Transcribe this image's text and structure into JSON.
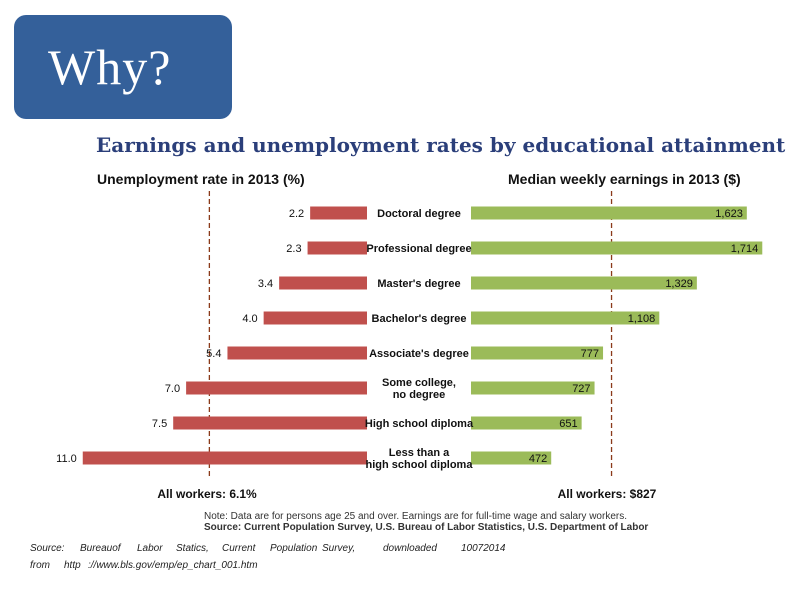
{
  "header": {
    "why_text": "Why?"
  },
  "chart_data": {
    "type": "bar",
    "title": "Earnings and unemployment rates by educational attainment",
    "categories": [
      [
        "Doctoral degree"
      ],
      [
        "Professional degree"
      ],
      [
        "Master's degree"
      ],
      [
        "Bachelor's degree"
      ],
      [
        "Associate's degree"
      ],
      [
        "Some college,",
        "no degree"
      ],
      [
        "High school diploma"
      ],
      [
        "Less than a",
        "high school diploma"
      ]
    ],
    "left_panel": {
      "title": "Unemployment rate in 2013 (%)",
      "values": [
        2.2,
        2.3,
        3.4,
        4.0,
        5.4,
        7.0,
        7.5,
        11.0
      ],
      "labels": [
        "2.2",
        "2.3",
        "3.4",
        "4.0",
        "5.4",
        "7.0",
        "7.5",
        "11.0"
      ],
      "reference_value": 6.1,
      "reference_label": "All workers: 6.1%",
      "color": "#c0504d",
      "xlim": [
        0,
        11.3
      ]
    },
    "right_panel": {
      "title": "Median weekly earnings in 2013 ($)",
      "values": [
        1623,
        1714,
        1329,
        1108,
        777,
        727,
        651,
        472
      ],
      "labels": [
        "1,623",
        "1,714",
        "1,329",
        "1,108",
        "777",
        "727",
        "651",
        "472"
      ],
      "reference_value": 827,
      "reference_label": "All workers: $827",
      "color": "#9bbb59",
      "xlim": [
        0,
        1730
      ]
    },
    "reference_line_color": "#8b3a1a"
  },
  "footnote": {
    "note": "Note: Data are for persons age 25 and over. Earnings are for full-time wage and salary workers.",
    "source": "Source: Current Population Survey, U.S. Bureau of Labor Statistics, U.S. Department of Labor"
  },
  "source_credit": {
    "line1": [
      "Source:",
      "Bureauof",
      "Labor",
      "Statics,",
      "Current",
      "Population",
      "Survey,",
      "downloaded",
      "10072014"
    ],
    "line2": [
      "from",
      "http",
      "://www.bls.gov/emp/ep_chart_001.htm"
    ]
  }
}
